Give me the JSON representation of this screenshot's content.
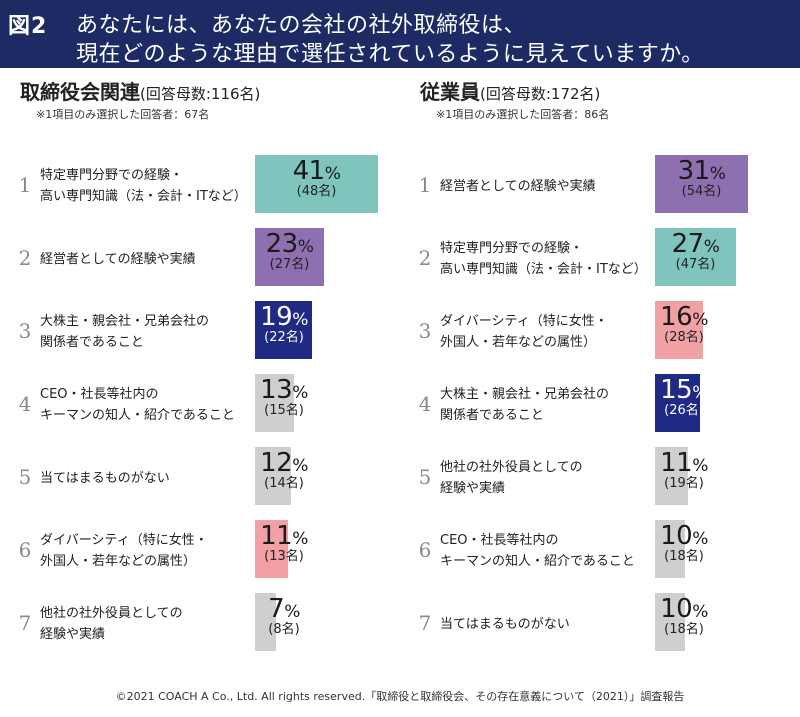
{
  "header": {
    "fig": "図2",
    "line1": "あなたには、あなたの会社の社外取締役は、",
    "line2": "現在どのような理由で選任されているように見えていますか。"
  },
  "colors": {
    "header_bg": "#1d2a63",
    "teal": "#7fc4bd",
    "purple": "#8e70b0",
    "navy": "#1f2a84",
    "gray": "#cfcfcf",
    "pink": "#f1a1a4"
  },
  "chart_data": [
    {
      "type": "bar",
      "title": "取締役会関連",
      "subtitle": "(回答母数:116名)",
      "note": "※1項目のみ選択した回答者：67名",
      "unit": "%",
      "categories": [
        [
          "特定専門分野での経験・",
          "高い専門知識（法・会計・ITなど）"
        ],
        [
          "経営者としての経験や実績"
        ],
        [
          "大株主・親会社・兄弟会社の",
          "関係者であること"
        ],
        [
          "CEO・社長等社内の",
          "キーマンの知人・紹介であること"
        ],
        [
          "当てはまるものがない"
        ],
        [
          "ダイバーシティ（特に女性・",
          "外国人・若年などの属性）"
        ],
        [
          "他社の社外役員としての",
          "経験や実績"
        ]
      ],
      "ranks": [
        "1",
        "2",
        "3",
        "4",
        "5",
        "6",
        "7"
      ],
      "values": [
        41,
        23,
        19,
        13,
        12,
        11,
        7
      ],
      "counts": [
        "(48名)",
        "(27名)",
        "(22名)",
        "(15名)",
        "(14名)",
        "(13名)",
        "(8名)"
      ],
      "colors": [
        "teal",
        "purple",
        "navy",
        "gray",
        "gray",
        "pink",
        "gray"
      ]
    },
    {
      "type": "bar",
      "title": "従業員",
      "subtitle": "(回答母数:172名)",
      "note": "※1項目のみ選択した回答者：86名",
      "unit": "%",
      "categories": [
        [
          "経営者としての経験や実績"
        ],
        [
          "特定専門分野での経験・",
          "高い専門知識（法・会計・ITなど）"
        ],
        [
          "ダイバーシティ（特に女性・",
          "外国人・若年などの属性）"
        ],
        [
          "大株主・親会社・兄弟会社の",
          "関係者であること"
        ],
        [
          "他社の社外役員としての",
          "経験や実績"
        ],
        [
          "CEO・社長等社内の",
          "キーマンの知人・紹介であること"
        ],
        [
          "当てはまるものがない"
        ]
      ],
      "ranks": [
        "1",
        "2",
        "3",
        "4",
        "5",
        "6",
        "7"
      ],
      "values": [
        31,
        27,
        16,
        15,
        11,
        10,
        10
      ],
      "counts": [
        "(54名)",
        "(47名)",
        "(28名)",
        "(26名)",
        "(19名)",
        "(18名)",
        "(18名)"
      ],
      "colors": [
        "purple",
        "teal",
        "pink",
        "navy",
        "gray",
        "gray",
        "gray"
      ]
    }
  ],
  "footer": "©2021 COACH A Co., Ltd. All rights reserved.「取締役と取締役会、その存在意義について（2021）」調査報告"
}
